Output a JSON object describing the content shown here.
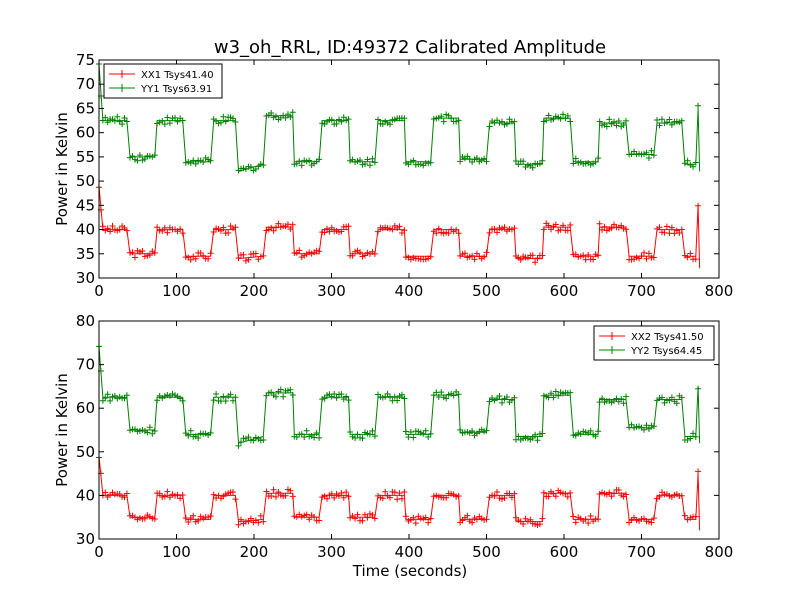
{
  "chart_data": [
    {
      "type": "line",
      "title": "w3_oh_RRL, ID:49372 Calibrated Amplitude",
      "xlabel": "",
      "ylabel": "Power in Kelvin",
      "xlim": [
        0,
        800
      ],
      "ylim": [
        30,
        75
      ],
      "xticks": [
        "0",
        "100",
        "200",
        "300",
        "400",
        "500",
        "600",
        "700",
        "800"
      ],
      "yticks": [
        "30",
        "35",
        "40",
        "45",
        "50",
        "55",
        "60",
        "65",
        "70",
        "75"
      ],
      "legend_position": "top-left",
      "x": [
        0,
        5,
        36,
        40,
        72,
        75,
        108,
        112,
        144,
        148,
        176,
        180,
        212,
        216,
        250,
        252,
        284,
        288,
        322,
        324,
        356,
        360,
        394,
        396,
        428,
        432,
        464,
        466,
        500,
        504,
        536,
        538,
        572,
        574,
        608,
        612,
        644,
        646,
        680,
        684,
        716,
        720,
        752,
        756,
        770,
        773,
        775
      ],
      "series": [
        {
          "name": "XX1 Tsys41.40",
          "color": "#ff0000",
          "values": [
            49,
            40,
            40,
            35,
            35,
            40,
            40,
            34.5,
            34.5,
            40,
            40,
            34,
            34.5,
            40.5,
            40.5,
            35,
            35,
            40,
            40,
            35,
            35,
            40,
            40,
            34.5,
            34.5,
            40,
            40,
            34.5,
            34.5,
            40,
            40,
            34,
            34,
            40.5,
            40.5,
            34.5,
            34.5,
            40.5,
            40.5,
            34.5,
            34.5,
            40,
            40,
            34.5,
            34.5,
            45,
            32
          ]
        },
        {
          "name": "YY1 Tsys63.91",
          "color": "#008000",
          "values": [
            74,
            62.5,
            62.5,
            55,
            55,
            62.5,
            62.5,
            54,
            54,
            62.5,
            62.5,
            52,
            53.5,
            63.5,
            63.5,
            54,
            54,
            62.5,
            62.5,
            54,
            54,
            62.5,
            62.5,
            54,
            54,
            63,
            63,
            54.5,
            54.5,
            62,
            62,
            53.5,
            53.5,
            63,
            63,
            54,
            54,
            62,
            62,
            55.5,
            55.5,
            62,
            62,
            53.5,
            53.5,
            65,
            52
          ]
        }
      ]
    },
    {
      "type": "line",
      "title": "",
      "xlabel": "Time (seconds)",
      "ylabel": "Power in Kelvin",
      "xlim": [
        0,
        800
      ],
      "ylim": [
        30,
        80
      ],
      "xticks": [
        "0",
        "100",
        "200",
        "300",
        "400",
        "500",
        "600",
        "700",
        "800"
      ],
      "yticks": [
        "30",
        "40",
        "50",
        "60",
        "70",
        "80"
      ],
      "legend_position": "top-right",
      "x": [
        0,
        5,
        36,
        40,
        72,
        75,
        108,
        112,
        144,
        148,
        176,
        180,
        212,
        216,
        250,
        252,
        284,
        288,
        322,
        324,
        356,
        360,
        394,
        396,
        428,
        432,
        464,
        466,
        500,
        504,
        536,
        538,
        572,
        574,
        608,
        612,
        644,
        646,
        680,
        684,
        716,
        720,
        752,
        756,
        770,
        773,
        775
      ],
      "series": [
        {
          "name": "XX2 Tsys41.50",
          "color": "#ff0000",
          "values": [
            49,
            40,
            40,
            35,
            35,
            40,
            40,
            34.5,
            34.5,
            40,
            40,
            34,
            34.5,
            40.5,
            40.5,
            35,
            35,
            40,
            40,
            35,
            35,
            40,
            40,
            34.5,
            34.5,
            40,
            40,
            34.5,
            34.5,
            40,
            40,
            34,
            34,
            40.5,
            40.5,
            34.5,
            34.5,
            40.5,
            40.5,
            34.5,
            34.5,
            40,
            40,
            34.5,
            34.5,
            45,
            32
          ]
        },
        {
          "name": "YY2 Tsys64.45",
          "color": "#008000",
          "values": [
            74,
            62.5,
            62.5,
            55,
            55,
            62.5,
            62.5,
            54,
            54,
            62.5,
            62.5,
            52,
            53.5,
            63.5,
            63.5,
            54,
            54,
            62.5,
            62.5,
            54,
            54,
            62.5,
            62.5,
            54,
            54,
            63,
            63,
            54.5,
            54.5,
            62,
            62,
            53.5,
            53.5,
            63,
            63,
            54,
            54,
            62,
            62,
            55.5,
            55.5,
            62,
            62,
            53.5,
            53.5,
            65,
            52
          ]
        }
      ]
    }
  ]
}
